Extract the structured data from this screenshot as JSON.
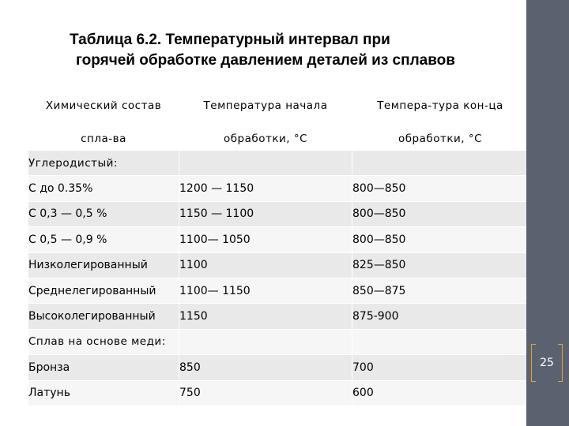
{
  "title": {
    "line1": "Таблица 6.2. Температурный интервал при",
    "line2": "горячей обработке давлением деталей из сплавов"
  },
  "table": {
    "header": [
      {
        "top": "Химический состав",
        "bottom": "спла-ва"
      },
      {
        "top": "Температура начала",
        "bottom": "обработки, °С"
      },
      {
        "top": "Темпера-тура кон-ца",
        "bottom": "обработки, °С"
      }
    ],
    "rows": [
      {
        "type": "section",
        "cells": [
          "Углеродистый:",
          "",
          ""
        ]
      },
      {
        "type": "data",
        "cells": [
          "С до 0.35%",
          "1200 — 1150",
          "800—850"
        ]
      },
      {
        "type": "data",
        "cells": [
          "С 0,3 — 0,5 %",
          "1150 — 1100",
          "800—850"
        ]
      },
      {
        "type": "data",
        "cells": [
          "С 0,5 — 0,9 %",
          "1100— 1050",
          "800—850"
        ]
      },
      {
        "type": "data",
        "cells": [
          "Низколегированный",
          "1100",
          "825—850"
        ]
      },
      {
        "type": "data",
        "cells": [
          "Среднелегированный",
          "1100— 1150",
          "850—875"
        ]
      },
      {
        "type": "data",
        "cells": [
          "Высоколегированный",
          "1150",
          "875-900"
        ]
      },
      {
        "type": "section",
        "cells": [
          "Сплав на основе меди:",
          "",
          ""
        ]
      },
      {
        "type": "data",
        "cells": [
          "Бронза",
          "850",
          "700"
        ]
      },
      {
        "type": "data",
        "cells": [
          "Латунь",
          "750",
          "600"
        ]
      }
    ]
  },
  "page_number": "25",
  "colors": {
    "sidebar": "#5a6270",
    "accent": "#e8a12c",
    "row_odd": "#e9e9e9",
    "row_even": "#f6f6f6"
  }
}
